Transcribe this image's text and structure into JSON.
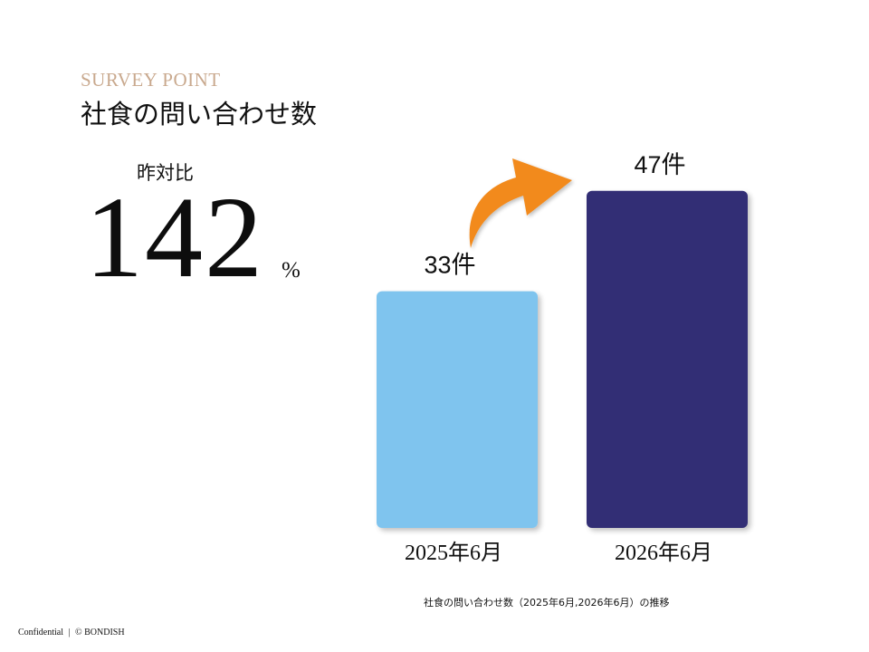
{
  "header": {
    "eyebrow": "SURVEY POINT",
    "title": "社食の問い合わせ数"
  },
  "kpi": {
    "label": "昨対比",
    "value": "142",
    "unit": "%"
  },
  "chart_data": {
    "type": "bar",
    "categories": [
      "2025年6月",
      "2026年6月"
    ],
    "values": [
      33,
      47
    ],
    "value_labels": [
      "33件",
      "47件"
    ],
    "colors": [
      "#7fc4ee",
      "#332f74"
    ],
    "ylim": [
      0,
      50
    ],
    "grid": false,
    "trend_arrow_color": "#f28a1c",
    "caption": "社食の問い合わせ数（2025年6月,2026年6月）の推移"
  },
  "footer": {
    "confidential": "Confidential",
    "separator": "|",
    "copyright": "© BONDISH"
  }
}
